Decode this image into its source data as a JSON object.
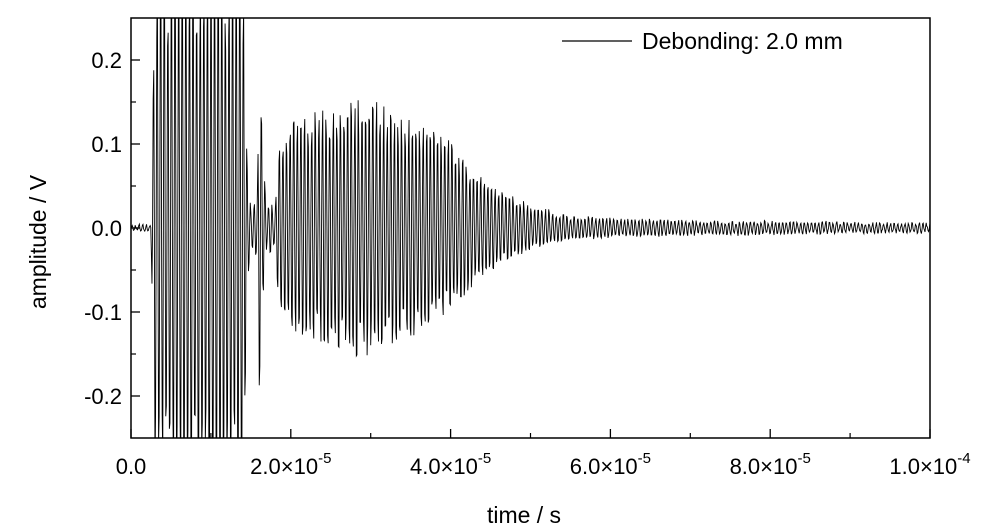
{
  "chart_data": {
    "type": "line",
    "title": "",
    "xlabel": "time / s",
    "ylabel": "amplitude / V",
    "xlim": [
      0,
      0.0001
    ],
    "ylim": [
      -0.25,
      0.25
    ],
    "x_ticks": [
      {
        "value": 0,
        "mantissa": "0.0",
        "exponent": ""
      },
      {
        "value": 2e-05,
        "mantissa": "2.0×10",
        "exponent": "-5"
      },
      {
        "value": 4e-05,
        "mantissa": "4.0×10",
        "exponent": "-5"
      },
      {
        "value": 6e-05,
        "mantissa": "6.0×10",
        "exponent": "-5"
      },
      {
        "value": 8e-05,
        "mantissa": "8.0×10",
        "exponent": "-5"
      },
      {
        "value": 0.0001,
        "mantissa": "1.0×10",
        "exponent": "-4"
      }
    ],
    "y_ticks": [
      {
        "value": 0.2,
        "label": "0.2"
      },
      {
        "value": 0.1,
        "label": "0.1"
      },
      {
        "value": 0.0,
        "label": "0.0"
      },
      {
        "value": -0.1,
        "label": "-0.1"
      },
      {
        "value": -0.2,
        "label": "-0.2"
      }
    ],
    "grid": false,
    "legend_position": "top-right",
    "series": [
      {
        "name": "Debonding: 2.0 mm",
        "color": "#000000",
        "envelope": {
          "t": [
            0,
            2.5e-06,
            3e-06,
            1.4e-05,
            1.45e-05,
            1.5e-05,
            1.58e-05,
            1.6e-05,
            1.65e-05,
            1.7e-05,
            1.75e-05,
            1.8e-05,
            1.85e-05,
            1.95e-05,
            2.1e-05,
            2.5e-05,
            2.8e-05,
            3e-05,
            3.2e-05,
            3.5e-05,
            3.8e-05,
            4e-05,
            4.2e-05,
            4.5e-05,
            5e-05,
            5.5e-05,
            6e-05,
            7e-05,
            8e-05,
            9e-05,
            0.0001
          ],
          "amp": [
            0.003,
            0.003,
            0.3,
            0.3,
            0.1,
            0.02,
            0.04,
            0.2,
            0.09,
            0.02,
            0.03,
            0.02,
            0.1,
            0.12,
            0.13,
            0.14,
            0.15,
            0.155,
            0.14,
            0.13,
            0.115,
            0.1,
            0.075,
            0.05,
            0.025,
            0.014,
            0.011,
            0.008,
            0.007,
            0.006,
            0.005
          ]
        },
        "carrier_period_s": 4.5e-07
      }
    ]
  }
}
